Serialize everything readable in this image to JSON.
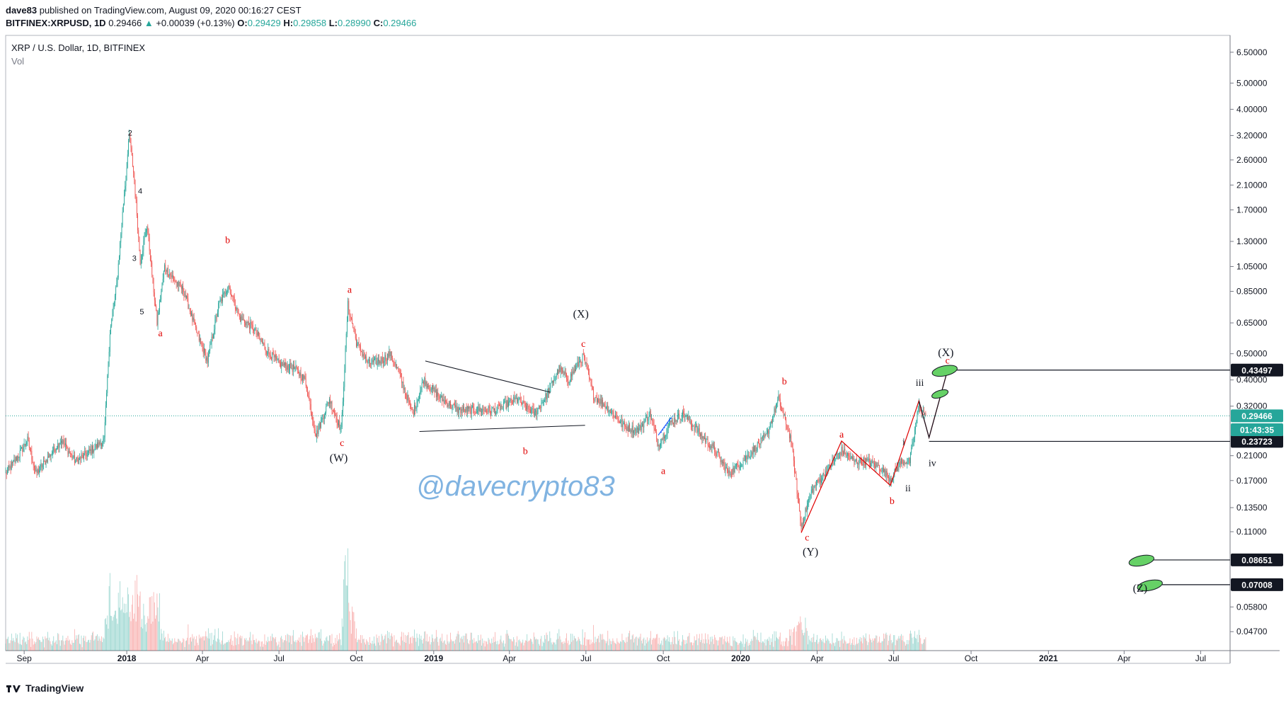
{
  "header": {
    "author": "dave83",
    "published_text": "published on TradingView.com, August 09, 2020 00:16:27 CEST",
    "symbol": "BITFINEX:XRPUSD, 1D",
    "last": "0.29466",
    "change": "+0.00039 (+0.13%)",
    "open_label": "O:",
    "open": "0.29429",
    "high_label": "H:",
    "high": "0.29858",
    "low_label": "L:",
    "low": "0.28990",
    "close_label": "C:",
    "close": "0.29466"
  },
  "legend": {
    "title": "XRP / U.S. Dollar, 1D, BITFINEX",
    "vol": "Vol"
  },
  "watermark": "@davecrypto83",
  "footer": {
    "brand": "TradingView"
  },
  "colors": {
    "up": "#26a69a",
    "down": "#ef5350",
    "red_label": "#e00000",
    "ellipse": "#66d166",
    "axis": "#131722",
    "watermark": "#6aa6dc"
  },
  "chart_data": {
    "type": "line",
    "title": "XRP / U.S. Dollar, 1D, BITFINEX",
    "yscale": "log",
    "ylim": [
      0.04,
      7.5
    ],
    "xlim": [
      "2017-08-10",
      "2021-08-05"
    ],
    "price_ticks": [
      "6.50000",
      "5.00000",
      "4.00000",
      "3.20000",
      "2.60000",
      "2.10000",
      "1.70000",
      "1.30000",
      "1.05000",
      "0.85000",
      "0.65000",
      "0.50000",
      "0.40000",
      "0.32000",
      "0.21000",
      "0.17000",
      "0.13500",
      "0.11000",
      "0.05800",
      "0.04700"
    ],
    "time_ticks": [
      {
        "label": "Sep",
        "date": "2017-09-01",
        "bold": false
      },
      {
        "label": "2018",
        "date": "2018-01-01",
        "bold": true
      },
      {
        "label": "Apr",
        "date": "2018-04-01",
        "bold": false
      },
      {
        "label": "Jul",
        "date": "2018-07-01",
        "bold": false
      },
      {
        "label": "Oct",
        "date": "2018-10-01",
        "bold": false
      },
      {
        "label": "2019",
        "date": "2019-01-01",
        "bold": true
      },
      {
        "label": "Apr",
        "date": "2019-04-01",
        "bold": false
      },
      {
        "label": "Jul",
        "date": "2019-07-01",
        "bold": false
      },
      {
        "label": "Oct",
        "date": "2019-10-01",
        "bold": false
      },
      {
        "label": "2020",
        "date": "2020-01-01",
        "bold": true
      },
      {
        "label": "Apr",
        "date": "2020-04-01",
        "bold": false
      },
      {
        "label": "Jul",
        "date": "2020-07-01",
        "bold": false
      },
      {
        "label": "Oct",
        "date": "2020-10-01",
        "bold": false
      },
      {
        "label": "2021",
        "date": "2021-01-01",
        "bold": true
      },
      {
        "label": "Apr",
        "date": "2021-04-01",
        "bold": false
      },
      {
        "label": "Jul",
        "date": "2021-07-01",
        "bold": false
      }
    ],
    "price_path": [
      [
        "2017-08-10",
        0.18
      ],
      [
        "2017-08-25",
        0.21
      ],
      [
        "2017-09-05",
        0.24
      ],
      [
        "2017-09-15",
        0.18
      ],
      [
        "2017-10-01",
        0.21
      ],
      [
        "2017-10-15",
        0.24
      ],
      [
        "2017-11-01",
        0.2
      ],
      [
        "2017-11-20",
        0.22
      ],
      [
        "2017-12-05",
        0.24
      ],
      [
        "2017-12-12",
        0.6
      ],
      [
        "2017-12-20",
        0.9
      ],
      [
        "2017-12-28",
        1.8
      ],
      [
        "2018-01-04",
        3.2
      ],
      [
        "2018-01-10",
        2.2
      ],
      [
        "2018-01-17",
        1.1
      ],
      [
        "2018-01-25",
        1.5
      ],
      [
        "2018-02-06",
        0.65
      ],
      [
        "2018-02-15",
        1.05
      ],
      [
        "2018-02-25",
        0.95
      ],
      [
        "2018-03-10",
        0.85
      ],
      [
        "2018-03-25",
        0.6
      ],
      [
        "2018-04-07",
        0.47
      ],
      [
        "2018-04-20",
        0.75
      ],
      [
        "2018-05-02",
        0.9
      ],
      [
        "2018-05-15",
        0.68
      ],
      [
        "2018-06-01",
        0.62
      ],
      [
        "2018-06-15",
        0.52
      ],
      [
        "2018-07-01",
        0.46
      ],
      [
        "2018-07-20",
        0.44
      ],
      [
        "2018-08-01",
        0.4
      ],
      [
        "2018-08-14",
        0.25
      ],
      [
        "2018-08-30",
        0.34
      ],
      [
        "2018-09-13",
        0.26
      ],
      [
        "2018-09-21",
        0.76
      ],
      [
        "2018-10-01",
        0.55
      ],
      [
        "2018-10-15",
        0.46
      ],
      [
        "2018-10-30",
        0.47
      ],
      [
        "2018-11-10",
        0.5
      ],
      [
        "2018-11-20",
        0.43
      ],
      [
        "2018-12-07",
        0.3
      ],
      [
        "2018-12-20",
        0.4
      ],
      [
        "2019-01-10",
        0.34
      ],
      [
        "2019-01-30",
        0.31
      ],
      [
        "2019-02-20",
        0.31
      ],
      [
        "2019-03-15",
        0.31
      ],
      [
        "2019-04-10",
        0.34
      ],
      [
        "2019-05-01",
        0.3
      ],
      [
        "2019-05-15",
        0.35
      ],
      [
        "2019-05-30",
        0.44
      ],
      [
        "2019-06-10",
        0.4
      ],
      [
        "2019-06-28",
        0.49
      ],
      [
        "2019-07-10",
        0.35
      ],
      [
        "2019-07-25",
        0.32
      ],
      [
        "2019-08-15",
        0.27
      ],
      [
        "2019-09-01",
        0.26
      ],
      [
        "2019-09-15",
        0.3
      ],
      [
        "2019-09-25",
        0.23
      ],
      [
        "2019-10-10",
        0.28
      ],
      [
        "2019-10-25",
        0.3
      ],
      [
        "2019-11-15",
        0.25
      ],
      [
        "2019-12-01",
        0.22
      ],
      [
        "2019-12-18",
        0.18
      ],
      [
        "2020-01-10",
        0.21
      ],
      [
        "2020-02-01",
        0.25
      ],
      [
        "2020-02-15",
        0.34
      ],
      [
        "2020-03-01",
        0.24
      ],
      [
        "2020-03-13",
        0.115
      ],
      [
        "2020-03-25",
        0.155
      ],
      [
        "2020-04-15",
        0.19
      ],
      [
        "2020-04-30",
        0.22
      ],
      [
        "2020-05-15",
        0.2
      ],
      [
        "2020-05-30",
        0.2
      ],
      [
        "2020-06-15",
        0.19
      ],
      [
        "2020-06-27",
        0.172
      ],
      [
        "2020-07-10",
        0.2
      ],
      [
        "2020-07-20",
        0.2
      ],
      [
        "2020-07-31",
        0.32
      ],
      [
        "2020-08-08",
        0.29466
      ]
    ],
    "annotations": [
      {
        "text": "2",
        "date": "2018-01-05",
        "price": 3.2,
        "color": "black",
        "size": 11
      },
      {
        "text": "4",
        "date": "2018-01-17",
        "price": 1.95,
        "color": "black",
        "size": 11
      },
      {
        "text": "3",
        "date": "2018-01-10",
        "price": 1.1,
        "color": "black",
        "size": 11
      },
      {
        "text": "5",
        "date": "2018-01-19",
        "price": 0.7,
        "color": "black",
        "size": 11
      },
      {
        "text": "a",
        "date": "2018-02-10",
        "price": 0.58,
        "color": "red",
        "size": 14
      },
      {
        "text": "b",
        "date": "2018-05-01",
        "price": 1.28,
        "color": "red",
        "size": 14
      },
      {
        "text": "a",
        "date": "2018-09-23",
        "price": 0.84,
        "color": "red",
        "size": 14
      },
      {
        "text": "c",
        "date": "2018-09-14",
        "price": 0.228,
        "color": "red",
        "size": 14
      },
      {
        "text": "(W)",
        "date": "2018-09-10",
        "price": 0.2,
        "color": "black",
        "size": 16
      },
      {
        "text": "(X)",
        "date": "2019-06-25",
        "price": 0.68,
        "color": "black",
        "size": 16
      },
      {
        "text": "c",
        "date": "2019-06-28",
        "price": 0.53,
        "color": "red",
        "size": 14
      },
      {
        "text": "b",
        "date": "2019-04-20",
        "price": 0.213,
        "color": "red",
        "size": 14
      },
      {
        "text": "a",
        "date": "2019-10-01",
        "price": 0.18,
        "color": "red",
        "size": 14
      },
      {
        "text": "b",
        "date": "2020-02-22",
        "price": 0.385,
        "color": "red",
        "size": 14
      },
      {
        "text": "a",
        "date": "2020-04-30",
        "price": 0.245,
        "color": "red",
        "size": 14
      },
      {
        "text": "b",
        "date": "2020-06-29",
        "price": 0.139,
        "color": "red",
        "size": 14
      },
      {
        "text": "c",
        "date": "2020-03-20",
        "price": 0.102,
        "color": "red",
        "size": 14
      },
      {
        "text": "(Y)",
        "date": "2020-03-24",
        "price": 0.09,
        "color": "black",
        "size": 16
      },
      {
        "text": "i",
        "date": "2020-07-13",
        "price": 0.23,
        "color": "black",
        "size": 14
      },
      {
        "text": "ii",
        "date": "2020-07-18",
        "price": 0.155,
        "color": "black",
        "size": 14
      },
      {
        "text": "iii",
        "date": "2020-08-01",
        "price": 0.38,
        "color": "black",
        "size": 14
      },
      {
        "text": "iv",
        "date": "2020-08-16",
        "price": 0.192,
        "color": "black",
        "size": 14
      },
      {
        "text": "(X)",
        "date": "2020-09-01",
        "price": 0.49,
        "color": "black",
        "size": 16
      },
      {
        "text": "c",
        "date": "2020-09-03",
        "price": 0.46,
        "color": "red",
        "size": 14
      },
      {
        "text": "(Z)",
        "date": "2021-04-20",
        "price": 0.066,
        "color": "black",
        "size": 16
      }
    ],
    "triangle_lines": [
      [
        [
          "2018-12-22",
          0.47
        ],
        [
          "2019-05-20",
          0.36
        ]
      ],
      [
        [
          "2018-12-15",
          0.258
        ],
        [
          "2019-06-30",
          0.272
        ]
      ]
    ],
    "wave_path": [
      [
        "2020-03-13",
        0.109
      ],
      [
        "2020-04-30",
        0.238
      ],
      [
        "2020-06-27",
        0.163
      ],
      [
        "2020-07-31",
        0.335
      ],
      [
        "2020-08-12",
        0.245
      ],
      [
        "2020-09-03",
        0.434
      ]
    ],
    "price_labels": [
      {
        "value": "0.43497",
        "price": 0.43497,
        "from": "2020-09-03",
        "bg": "#131722",
        "fg": "#ffffff",
        "ellipse": true
      },
      {
        "value": "0.23723",
        "price": 0.23723,
        "from": "2020-08-12",
        "bg": "#131722",
        "fg": "#ffffff",
        "ellipse": false
      },
      {
        "value": "0.08651",
        "price": 0.08651,
        "from": "2021-04-25",
        "bg": "#131722",
        "fg": "#ffffff",
        "ellipse": true
      },
      {
        "value": "0.07008",
        "price": 0.07008,
        "from": "2021-05-05",
        "bg": "#131722",
        "fg": "#ffffff",
        "ellipse": true
      },
      {
        "value": "0.29466",
        "price": 0.29466,
        "from": "2017-08-10",
        "bg": "#26a69a",
        "fg": "#ffffff",
        "ellipse": false,
        "dotted": true
      },
      {
        "value": "01:43:35",
        "price": 0.262,
        "from": null,
        "bg": "#26a69a",
        "fg": "#ffffff",
        "ellipse": false,
        "timer": true
      }
    ]
  }
}
